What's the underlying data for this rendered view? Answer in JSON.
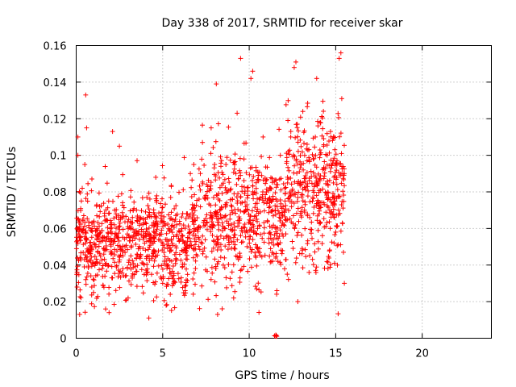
{
  "chart_data": {
    "type": "scatter",
    "title": "Day 338 of 2017, SRMTID for receiver skar",
    "xlabel": "GPS time / hours",
    "ylabel": "SRMTID / TECUs",
    "xlim": [
      0,
      24
    ],
    "ylim": [
      0,
      0.16
    ],
    "xticks": [
      0,
      5,
      10,
      15,
      20
    ],
    "yticks": [
      0,
      0.02,
      0.04,
      0.06,
      0.08,
      0.1,
      0.12,
      0.14,
      0.16
    ],
    "xtick_labels": [
      "0",
      "5",
      "10",
      "15",
      "20"
    ],
    "ytick_labels": [
      "0",
      "0.02",
      "0.04",
      "0.06",
      "0.08",
      "0.1",
      "0.12",
      "0.14",
      "0.16"
    ],
    "grid": true,
    "marker": "plus",
    "color": "#ff0000",
    "data_extent_hours": [
      0,
      15.5
    ],
    "series": [
      {
        "points": [
          [
            0.05,
            0.028
          ],
          [
            0.1,
            0.1
          ],
          [
            0.1,
            0.11
          ],
          [
            0.15,
            0.06
          ],
          [
            0.2,
            0.013
          ],
          [
            0.3,
            0.075
          ],
          [
            0.35,
            0.082
          ],
          [
            0.5,
            0.095
          ],
          [
            0.55,
            0.133
          ],
          [
            0.6,
            0.115
          ],
          [
            0.7,
            0.047
          ],
          [
            0.9,
            0.028
          ],
          [
            1.0,
            0.025
          ],
          [
            1.2,
            0.06
          ],
          [
            1.5,
            0.038
          ],
          [
            1.7,
            0.016
          ],
          [
            1.9,
            0.014
          ],
          [
            2.1,
            0.113
          ],
          [
            2.3,
            0.068
          ],
          [
            2.5,
            0.105
          ],
          [
            2.7,
            0.038
          ],
          [
            3.0,
            0.022
          ],
          [
            3.3,
            0.07
          ],
          [
            3.6,
            0.057
          ],
          [
            4.0,
            0.065
          ],
          [
            4.2,
            0.011
          ],
          [
            4.4,
            0.045
          ],
          [
            4.6,
            0.088
          ],
          [
            5.0,
            0.03
          ],
          [
            5.2,
            0.018
          ],
          [
            5.5,
            0.083
          ],
          [
            5.8,
            0.062
          ],
          [
            6.1,
            0.048
          ],
          [
            6.3,
            0.026
          ],
          [
            6.6,
            0.09
          ],
          [
            6.8,
            0.095
          ],
          [
            7.1,
            0.061
          ],
          [
            7.3,
            0.107
          ],
          [
            7.5,
            0.078
          ],
          [
            7.8,
            0.115
          ],
          [
            8.0,
            0.095
          ],
          [
            8.1,
            0.139
          ],
          [
            8.3,
            0.07
          ],
          [
            8.5,
            0.04
          ],
          [
            8.7,
            0.074
          ],
          [
            8.9,
            0.081
          ],
          [
            9.1,
            0.022
          ],
          [
            9.3,
            0.123
          ],
          [
            9.5,
            0.153
          ],
          [
            9.7,
            0.098
          ],
          [
            9.9,
            0.058
          ],
          [
            10.1,
            0.142
          ],
          [
            10.2,
            0.146
          ],
          [
            10.4,
            0.085
          ],
          [
            10.6,
            0.049
          ],
          [
            10.8,
            0.11
          ],
          [
            11.0,
            0.08
          ],
          [
            11.2,
            0.072
          ],
          [
            11.4,
            0.046
          ],
          [
            11.6,
            0.026
          ],
          [
            11.8,
            0.1
          ],
          [
            12.0,
            0.062
          ],
          [
            12.2,
            0.035
          ],
          [
            12.4,
            0.11
          ],
          [
            12.6,
            0.148
          ],
          [
            12.7,
            0.151
          ],
          [
            12.9,
            0.091
          ],
          [
            13.1,
            0.124
          ],
          [
            13.3,
            0.083
          ],
          [
            13.5,
            0.066
          ],
          [
            13.7,
            0.098
          ],
          [
            13.9,
            0.142
          ],
          [
            14.1,
            0.118
          ],
          [
            14.3,
            0.105
          ],
          [
            14.5,
            0.077
          ],
          [
            14.7,
            0.113
          ],
          [
            14.9,
            0.088
          ],
          [
            15.0,
            0.058
          ],
          [
            15.1,
            0.04
          ],
          [
            15.2,
            0.153
          ],
          [
            15.3,
            0.156
          ],
          [
            15.35,
            0.131
          ],
          [
            15.4,
            0.09
          ],
          [
            15.45,
            0.047
          ],
          [
            15.5,
            0.03
          ]
        ]
      }
    ]
  }
}
